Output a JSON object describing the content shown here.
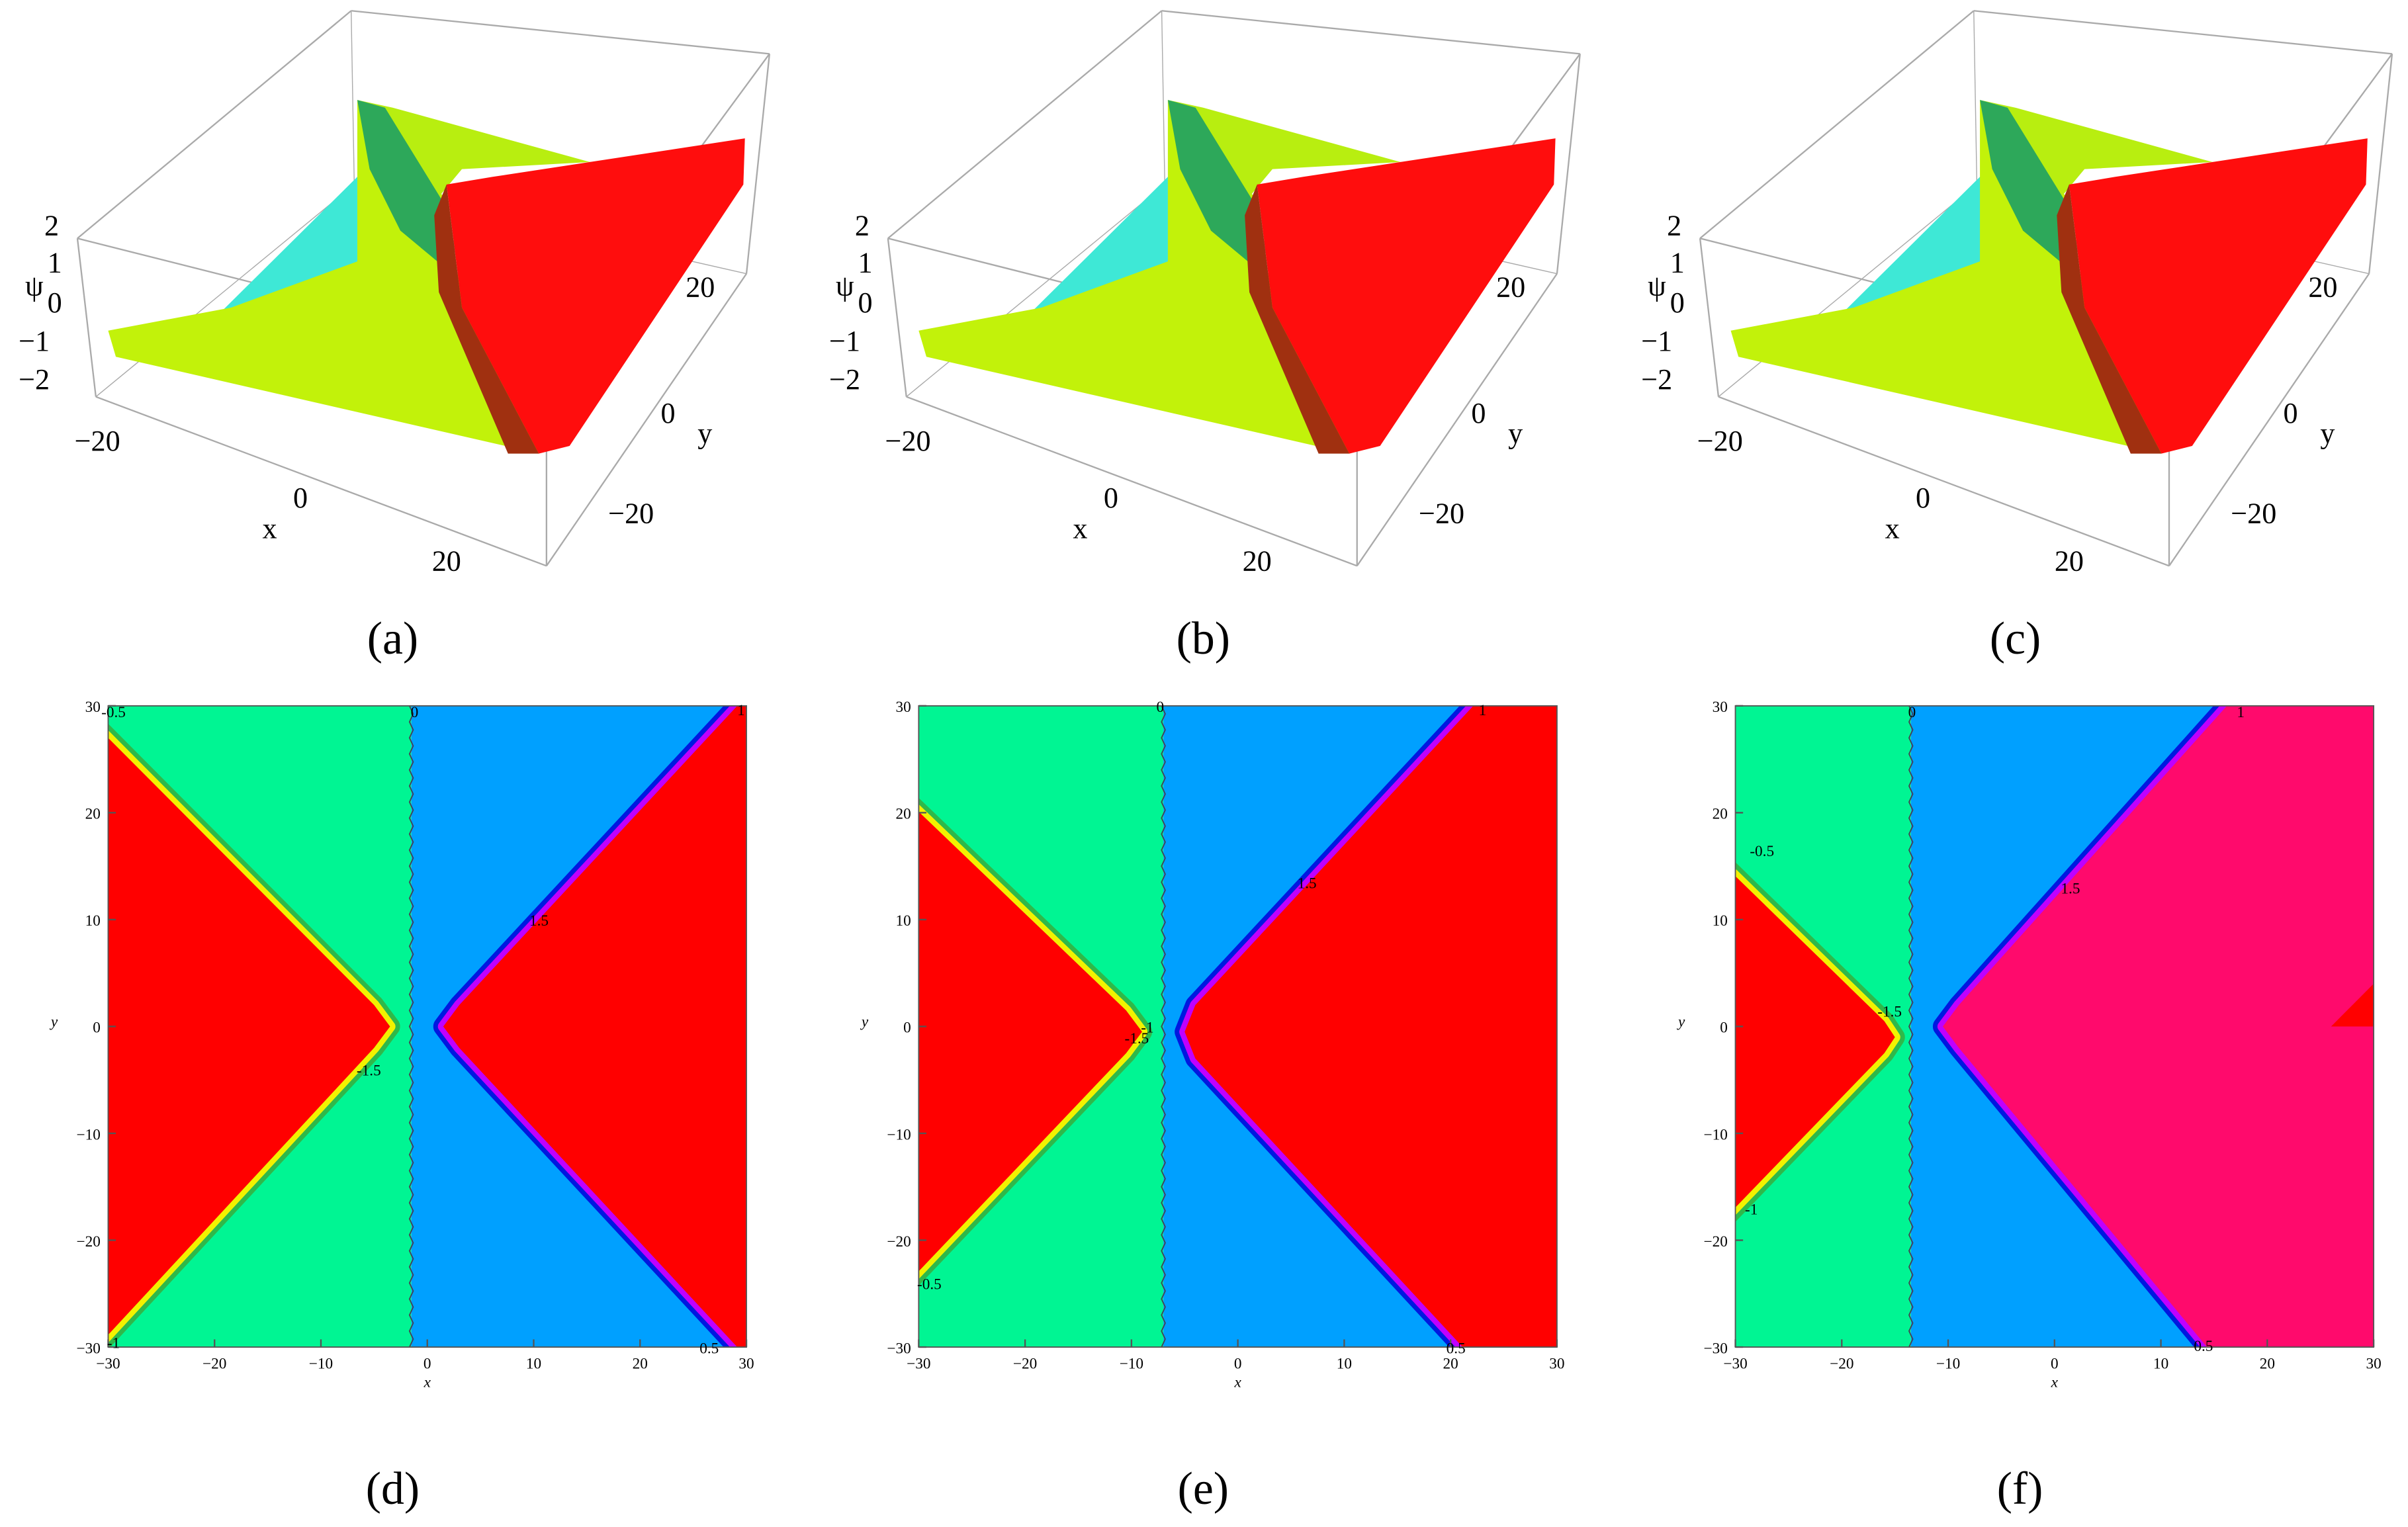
{
  "panels": [
    {
      "label": "(a)",
      "z_label": "ψ",
      "x_label": "x",
      "y_label": "y",
      "z_ticks": [
        "2",
        "1",
        "0",
        "−1",
        "−2"
      ],
      "x_ticks": [
        "−20",
        "0",
        "20"
      ],
      "y_ticks": [
        "20",
        "0",
        "−20"
      ]
    },
    {
      "label": "(b)",
      "z_label": "ψ",
      "x_label": "x",
      "y_label": "y",
      "z_ticks": [
        "2",
        "1",
        "0",
        "−1",
        "−2"
      ],
      "x_ticks": [
        "−20",
        "0",
        "20"
      ],
      "y_ticks": [
        "20",
        "0",
        "−20"
      ]
    },
    {
      "label": "(c)",
      "z_label": "ψ",
      "x_label": "x",
      "y_label": "y",
      "z_ticks": [
        "2",
        "1",
        "0",
        "−1",
        "−2"
      ],
      "x_ticks": [
        "−20",
        "0",
        "20"
      ],
      "y_ticks": [
        "20",
        "0",
        "−20"
      ]
    },
    {
      "label": "(d)",
      "x_label": "x",
      "y_label": "y",
      "x_ticks": [
        "−30",
        "−20",
        "−10",
        "0",
        "10",
        "20",
        "30"
      ],
      "y_ticks": [
        "30",
        "20",
        "10",
        "0",
        "−10",
        "−20",
        "−30"
      ],
      "contour_labels": [
        "-0.5",
        "0",
        "1",
        "1.5",
        "-1.5",
        "0.5",
        "-1"
      ]
    },
    {
      "label": "(e)",
      "x_label": "x",
      "y_label": "y",
      "x_ticks": [
        "−30",
        "−20",
        "−10",
        "0",
        "10",
        "20",
        "30"
      ],
      "y_ticks": [
        "30",
        "20",
        "10",
        "0",
        "−10",
        "−20",
        "−30"
      ],
      "contour_labels": [
        "0",
        "1",
        "1.5",
        "-1",
        "-1.5",
        "-0.5",
        "0.5"
      ]
    },
    {
      "label": "(f)",
      "x_label": "x",
      "y_label": "y",
      "x_ticks": [
        "−30",
        "−20",
        "−10",
        "0",
        "10",
        "20",
        "30"
      ],
      "y_ticks": [
        "30",
        "20",
        "10",
        "0",
        "−10",
        "−20",
        "−30"
      ],
      "contour_labels": [
        "0",
        "1",
        "1.5",
        "-0.5",
        "-1.5",
        "-1",
        "0.5"
      ]
    }
  ]
}
